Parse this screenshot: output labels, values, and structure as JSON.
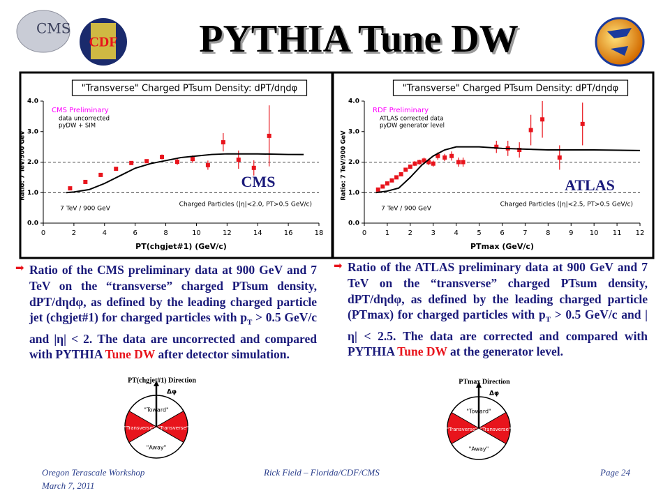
{
  "title": "PYTHIA Tune DW",
  "logos": [
    "CMS",
    "CDF"
  ],
  "chart_data": [
    {
      "type": "scatter",
      "title": "\"Transverse\" Charged PTsum Density: dPT/dηdφ",
      "label": "CMS",
      "xlabel": "PT(chgjet#1)  (GeV/c)",
      "ylabel": "Ratio: 7 TeV/900 GeV",
      "legend_title": "CMS Preliminary",
      "legend_title_color": "#ff00ff",
      "annotations": [
        "7 TeV / 900 GeV",
        "Charged Particles (|η|<2.0, PT>0.5 GeV/c)"
      ],
      "xlim": [
        0,
        18
      ],
      "xticks": [
        0,
        2,
        4,
        6,
        8,
        10,
        12,
        14,
        16,
        18
      ],
      "ylim": [
        0,
        4
      ],
      "yticks": [
        {
          "value": 0,
          "label": "0.0"
        },
        {
          "value": 1,
          "label": "1.0"
        },
        {
          "value": 2,
          "label": "2.0"
        },
        {
          "value": 3,
          "label": "3.0"
        },
        {
          "value": 4,
          "label": "4.0"
        }
      ],
      "hlines": [
        1,
        2
      ],
      "series": [
        {
          "name": "data uncorrected",
          "type": "errorbar",
          "color": "#e8141c",
          "x": [
            1.75,
            2.75,
            3.75,
            4.75,
            5.75,
            6.75,
            7.75,
            8.75,
            9.75,
            10.75,
            11.75,
            12.75,
            13.75,
            14.75
          ],
          "values": [
            1.14,
            1.35,
            1.58,
            1.78,
            1.97,
            2.03,
            2.17,
            2.01,
            2.1,
            1.9,
            2.65,
            2.08,
            1.81,
            2.86
          ],
          "errors": [
            0.05,
            0.05,
            0.05,
            0.05,
            0.05,
            0.05,
            0.08,
            0.1,
            0.12,
            0.15,
            0.3,
            0.3,
            0.25,
            1.0
          ]
        },
        {
          "name": "pyDW + SIM",
          "type": "line",
          "color": "#000000",
          "x": [
            1.5,
            2,
            3,
            4,
            5,
            6,
            7,
            8,
            9,
            10,
            11,
            12,
            14,
            16,
            17
          ],
          "values": [
            1.0,
            1.02,
            1.1,
            1.3,
            1.55,
            1.8,
            1.95,
            2.05,
            2.15,
            2.2,
            2.25,
            2.27,
            2.27,
            2.25,
            2.25
          ]
        }
      ]
    },
    {
      "type": "scatter",
      "title": "\"Transverse\" Charged PTsum Density: dPT/dηdφ",
      "label": "ATLAS",
      "xlabel": "PTmax (GeV/c)",
      "ylabel": "Ratio: 7 TeV/900 GeV",
      "legend_title": "RDF Preliminary",
      "legend_title_color": "#ff00ff",
      "legend_lines": [
        "ATLAS corrected data",
        "pyDW generator level"
      ],
      "annotations": [
        "7 TeV / 900 GeV",
        "Charged Particles (|η|<2.5, PT>0.5 GeV/c)"
      ],
      "xlim": [
        0,
        12
      ],
      "xticks": [
        0,
        1,
        2,
        3,
        4,
        5,
        6,
        7,
        8,
        9,
        10,
        11,
        12
      ],
      "ylim": [
        0,
        4
      ],
      "yticks": [
        {
          "value": 0,
          "label": "0.0"
        },
        {
          "value": 1,
          "label": "1.0"
        },
        {
          "value": 2,
          "label": "2.0"
        },
        {
          "value": 3,
          "label": "3.0"
        },
        {
          "value": 4,
          "label": "4.0"
        }
      ],
      "hlines": [
        1,
        2
      ],
      "series": [
        {
          "name": "ATLAS corrected data",
          "type": "errorbar",
          "color": "#e8141c",
          "x": [
            0.6,
            0.8,
            1.0,
            1.2,
            1.4,
            1.6,
            1.8,
            2.0,
            2.2,
            2.4,
            2.6,
            2.8,
            3.0,
            3.2,
            3.5,
            3.8,
            4.1,
            4.3,
            5.75,
            6.25,
            6.75,
            7.25,
            7.75,
            8.5,
            9.5
          ],
          "values": [
            1.1,
            1.2,
            1.3,
            1.4,
            1.5,
            1.6,
            1.75,
            1.85,
            1.95,
            2.0,
            2.05,
            2.0,
            1.95,
            2.2,
            2.15,
            2.2,
            2.0,
            2.0,
            2.5,
            2.45,
            2.4,
            3.05,
            3.4,
            2.15,
            3.25
          ],
          "errors": [
            0.05,
            0.05,
            0.05,
            0.05,
            0.05,
            0.06,
            0.06,
            0.07,
            0.08,
            0.08,
            0.1,
            0.1,
            0.1,
            0.12,
            0.12,
            0.15,
            0.15,
            0.15,
            0.2,
            0.25,
            0.25,
            0.5,
            0.6,
            0.4,
            0.7
          ]
        },
        {
          "name": "pyDW generator level",
          "type": "line",
          "color": "#000000",
          "x": [
            0.5,
            1,
            1.5,
            2,
            2.5,
            3,
            3.5,
            4,
            5,
            6,
            8,
            10,
            12
          ],
          "values": [
            1.0,
            1.05,
            1.15,
            1.5,
            1.9,
            2.2,
            2.4,
            2.5,
            2.5,
            2.45,
            2.4,
            2.4,
            2.38
          ]
        }
      ]
    }
  ],
  "bullets": [
    {
      "parts": [
        {
          "text": "Ratio of the CMS preliminary data at 900 GeV and 7 TeV on the “transverse” charged PTsum density, dPT/dηdφ, as defined by the leading charged particle jet (chgjet#1) for charged particles with p"
        },
        {
          "text": "T",
          "style": "sub"
        },
        {
          "text": " > 0.5 GeV/c and |η| < 2.  The data are uncorrected and compared with PYTHIA "
        },
        {
          "text": "Tune DW",
          "style": "red"
        },
        {
          "text": " after detector simulation."
        }
      ]
    },
    {
      "parts": [
        {
          "text": "Ratio of the ATLAS preliminary data at 900 GeV and 7 TeV on the “transverse” charged PTsum density, dPT/dηdφ, as defined by the leading charged particle (PTmax) for charged particles with p"
        },
        {
          "text": "T",
          "style": "sub"
        },
        {
          "text": " > 0.5 GeV/c and |η| < 2.5. The data are corrected and compared with PYTHIA "
        },
        {
          "text": "Tune DW",
          "style": "red"
        },
        {
          "text": " at the generator level."
        }
      ]
    }
  ],
  "diagrams": [
    {
      "title": "PT(chgjet#1) Direction",
      "toward": "\"Toward\"",
      "transverse": [
        "\"Transverse\"",
        "\"Transverse\""
      ],
      "away": "\"Away\"",
      "angle": "Δφ"
    },
    {
      "title": "PTmax Direction",
      "toward": "\"Toward\"",
      "transverse": [
        "\"Transverse\"",
        "\"Transverse\""
      ],
      "away": "\"Away\"",
      "angle": "Δφ"
    }
  ],
  "footer": {
    "left": [
      "Oregon Terascale Workshop",
      "March 7, 2011"
    ],
    "center": "Rick Field – Florida/CDF/CMS",
    "right": "Page 24"
  }
}
